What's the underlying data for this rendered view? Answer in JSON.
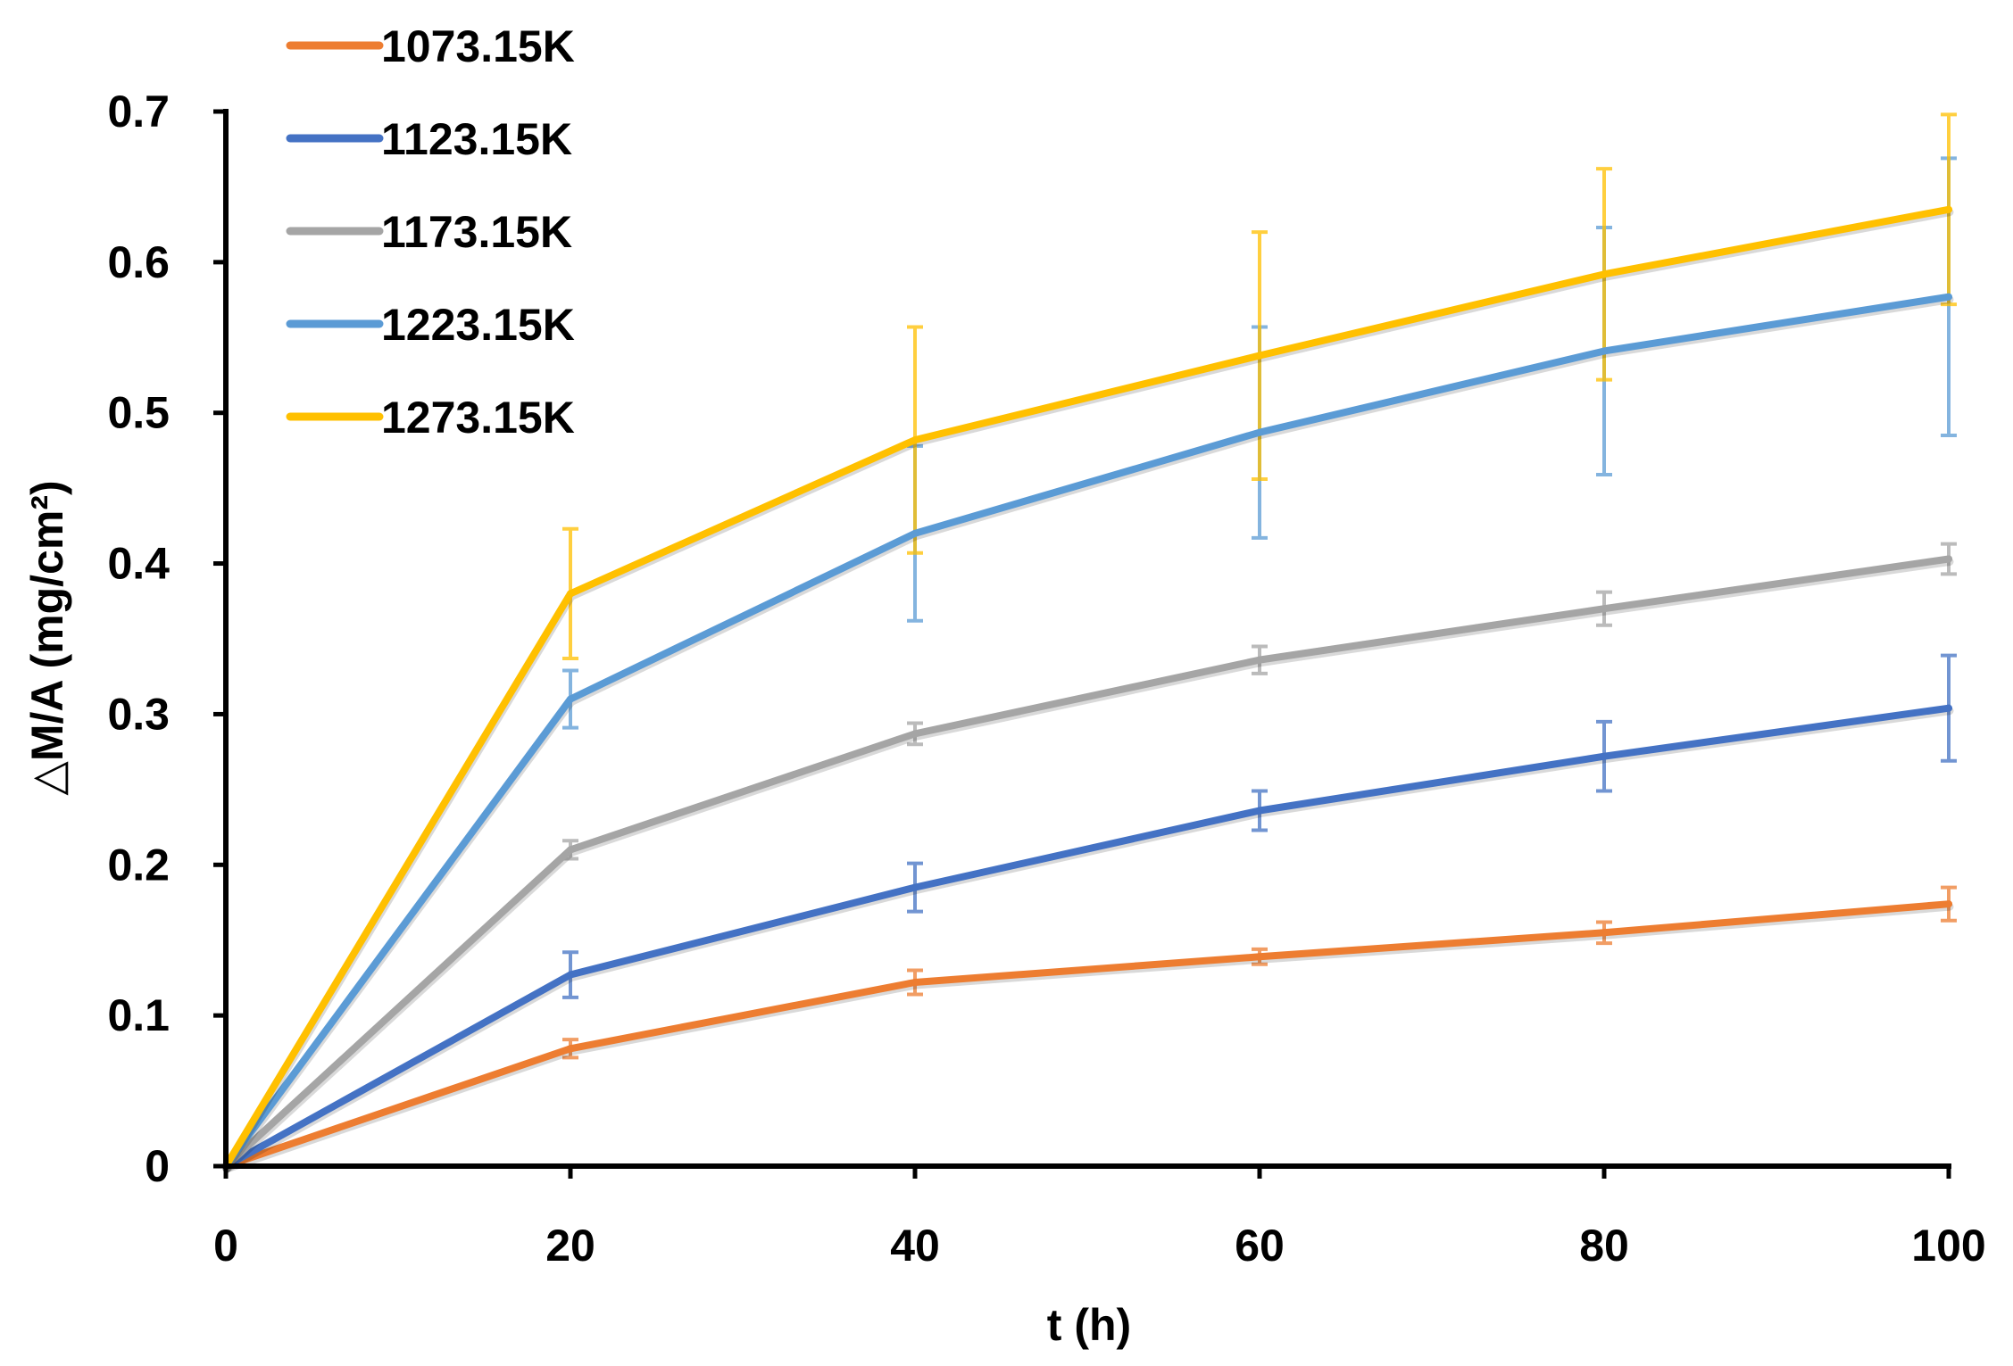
{
  "chart_data": {
    "type": "line",
    "title": "",
    "xlabel": "t (h)",
    "ylabel": "△M/A (mg/cm²)",
    "xlim": [
      0,
      100
    ],
    "ylim": [
      0,
      0.7
    ],
    "xticks": [
      0,
      20,
      40,
      60,
      80,
      100
    ],
    "yticks": [
      0,
      0.1,
      0.2,
      0.3,
      0.4,
      0.5,
      0.6,
      0.7
    ],
    "xtick_labels": [
      "0",
      "20",
      "40",
      "60",
      "80",
      "100"
    ],
    "ytick_labels": [
      "0",
      "0.1",
      "0.2",
      "0.3",
      "0.4",
      "0.5",
      "0.6",
      "0.7"
    ],
    "grid": false,
    "legend_position": "top-left",
    "x": [
      0,
      20,
      40,
      60,
      80,
      100
    ],
    "series": [
      {
        "name": "1073.15K",
        "color": "#ED7D31",
        "values": [
          0,
          0.078,
          0.122,
          0.139,
          0.155,
          0.174
        ],
        "errors": [
          0,
          0.006,
          0.008,
          0.005,
          0.007,
          0.011
        ]
      },
      {
        "name": "1123.15K",
        "color": "#4472C4",
        "values": [
          0,
          0.127,
          0.185,
          0.236,
          0.272,
          0.304
        ],
        "errors": [
          0,
          0.015,
          0.016,
          0.013,
          0.023,
          0.035
        ]
      },
      {
        "name": "1173.15K",
        "color": "#A5A5A5",
        "values": [
          0,
          0.21,
          0.287,
          0.336,
          0.37,
          0.403
        ],
        "errors": [
          0,
          0.006,
          0.007,
          0.009,
          0.011,
          0.01
        ]
      },
      {
        "name": "1223.15K",
        "color": "#5B9BD5",
        "values": [
          0,
          0.31,
          0.42,
          0.487,
          0.541,
          0.577
        ],
        "errors": [
          0,
          0.019,
          0.058,
          0.07,
          0.082,
          0.092
        ]
      },
      {
        "name": "1273.15K",
        "color": "#FFC000",
        "values": [
          0,
          0.38,
          0.482,
          0.538,
          0.592,
          0.635
        ],
        "errors": [
          0,
          0.043,
          0.075,
          0.082,
          0.07,
          0.063
        ]
      }
    ]
  }
}
